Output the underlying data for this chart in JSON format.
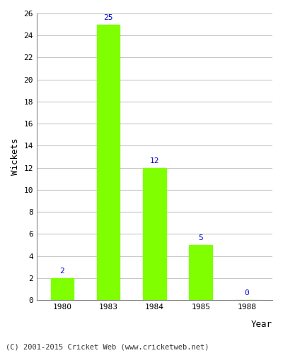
{
  "years": [
    "1980",
    "1983",
    "1984",
    "1985",
    "1988"
  ],
  "values": [
    2,
    25,
    12,
    5,
    0
  ],
  "bar_color": "#7fff00",
  "bar_edge_color": "#7fff00",
  "xlabel": "Year",
  "ylabel": "Wickets",
  "ylim": [
    0,
    26
  ],
  "yticks": [
    0,
    2,
    4,
    6,
    8,
    10,
    12,
    14,
    16,
    18,
    20,
    22,
    24,
    26
  ],
  "label_color": "#0000cc",
  "label_fontsize": 8,
  "axis_label_fontsize": 9,
  "tick_fontsize": 8,
  "footer_text": "(C) 2001-2015 Cricket Web (www.cricketweb.net)",
  "footer_fontsize": 7.5,
  "background_color": "#ffffff",
  "grid_color": "#c8c8c8",
  "bar_width": 0.5
}
